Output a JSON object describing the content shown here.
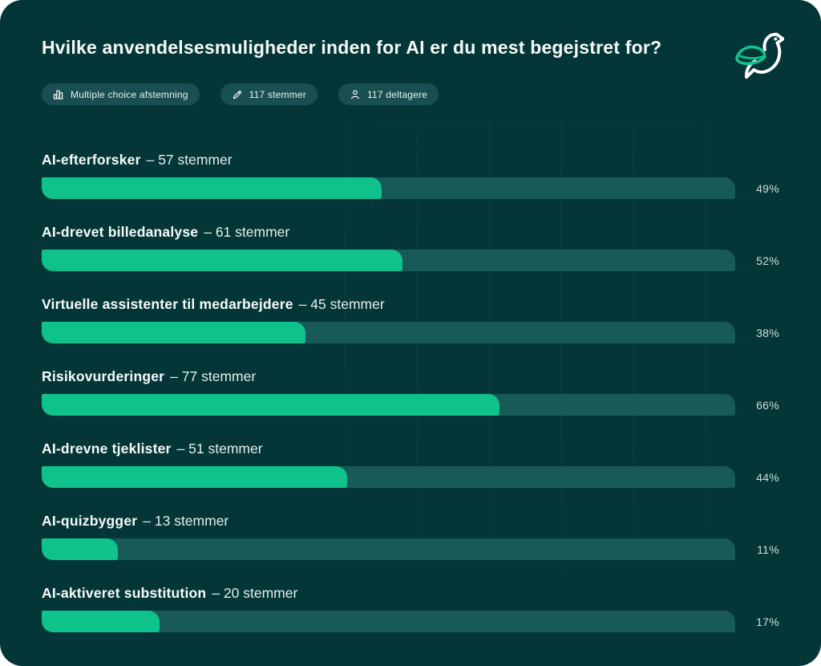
{
  "header": {
    "title": "Hvilke anvendelsesmuligheder inden for AI er du mest begejstret for?",
    "badges": [
      {
        "icon": "bar-chart-icon",
        "label": "Multiple choice afstemning"
      },
      {
        "icon": "pencil-icon",
        "label": "117 stemmer"
      },
      {
        "icon": "person-icon",
        "label": "117 deltagere"
      }
    ],
    "logo": "bird-leaf-logo"
  },
  "colors": {
    "background": "#043638",
    "bar_fill": "#0fc28c",
    "bar_track": "#185a58",
    "badge_bg": "#194f50",
    "text": "#f5faf8"
  },
  "chart_data": {
    "type": "bar",
    "orientation": "horizontal",
    "title": "Hvilke anvendelsesmuligheder inden for AI er du mest begejstret for?",
    "xlabel": "",
    "ylabel": "",
    "xlim": [
      0,
      100
    ],
    "grid": "faint",
    "legend": "none",
    "total_votes": 117,
    "participants": 117,
    "unit": "stemmer",
    "rows": [
      {
        "label": "AI-efterforsker",
        "votes": 57,
        "votes_text": "– 57 stemmer",
        "percent": 49,
        "percent_label": "49%"
      },
      {
        "label": "AI-drevet billedanalyse",
        "votes": 61,
        "votes_text": "– 61 stemmer",
        "percent": 52,
        "percent_label": "52%"
      },
      {
        "label": "Virtuelle assistenter til medarbejdere",
        "votes": 45,
        "votes_text": "– 45 stemmer",
        "percent": 38,
        "percent_label": "38%"
      },
      {
        "label": "Risikovurderinger",
        "votes": 77,
        "votes_text": "– 77 stemmer",
        "percent": 66,
        "percent_label": "66%"
      },
      {
        "label": "AI-drevne tjeklister",
        "votes": 51,
        "votes_text": "– 51 stemmer",
        "percent": 44,
        "percent_label": "44%"
      },
      {
        "label": "AI-quizbygger",
        "votes": 13,
        "votes_text": "– 13 stemmer",
        "percent": 11,
        "percent_label": "11%"
      },
      {
        "label": "AI-aktiveret substitution",
        "votes": 20,
        "votes_text": "– 20 stemmer",
        "percent": 17,
        "percent_label": "17%"
      }
    ]
  }
}
